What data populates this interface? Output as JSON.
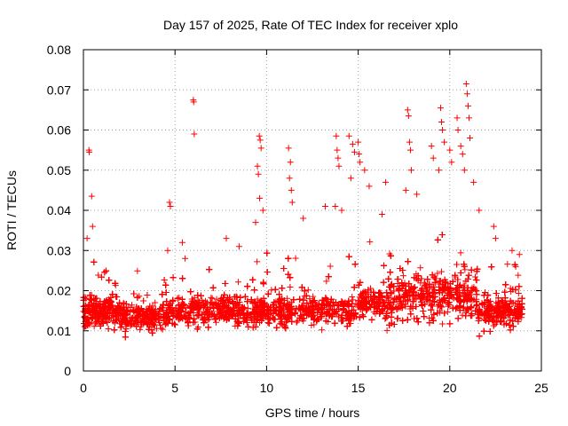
{
  "chart_data": {
    "type": "scatter",
    "title": "Day 157 of 2025, Rate Of TEC Index for receiver xplo",
    "xlabel": "GPS time / hours",
    "ylabel": "ROTI / TECUs",
    "xlim": [
      0,
      25
    ],
    "ylim": [
      0,
      0.08
    ],
    "x_ticks": [
      "0",
      "5",
      "10",
      "15",
      "20",
      "25"
    ],
    "y_ticks": [
      "0",
      "0.01",
      "0.02",
      "0.03",
      "0.04",
      "0.05",
      "0.06",
      "0.07",
      "0.08"
    ],
    "grid": true,
    "marker": "+",
    "series_color": "#ff0000",
    "series": [
      {
        "name": "ROTI",
        "points": [
          [
            0.3,
            0.055
          ],
          [
            0.32,
            0.0545
          ],
          [
            0.45,
            0.0435
          ],
          [
            0.2,
            0.033
          ],
          [
            0.5,
            0.036
          ],
          [
            4.7,
            0.042
          ],
          [
            4.75,
            0.041
          ],
          [
            4.6,
            0.03
          ],
          [
            5.4,
            0.032
          ],
          [
            5.55,
            0.028
          ],
          [
            6.0,
            0.0675
          ],
          [
            6.02,
            0.067
          ],
          [
            6.05,
            0.059
          ],
          [
            7.8,
            0.033
          ],
          [
            8.5,
            0.031
          ],
          [
            9.6,
            0.0585
          ],
          [
            9.65,
            0.0575
          ],
          [
            9.7,
            0.0555
          ],
          [
            9.5,
            0.051
          ],
          [
            9.55,
            0.049
          ],
          [
            9.62,
            0.043
          ],
          [
            9.4,
            0.037
          ],
          [
            9.8,
            0.04
          ],
          [
            11.2,
            0.0555
          ],
          [
            11.3,
            0.052
          ],
          [
            11.25,
            0.048
          ],
          [
            11.35,
            0.045
          ],
          [
            11.4,
            0.042
          ],
          [
            12.0,
            0.038
          ],
          [
            13.2,
            0.041
          ],
          [
            13.8,
            0.0585
          ],
          [
            13.85,
            0.055
          ],
          [
            13.9,
            0.053
          ],
          [
            13.95,
            0.051
          ],
          [
            13.75,
            0.041
          ],
          [
            14.1,
            0.04
          ],
          [
            14.5,
            0.0585
          ],
          [
            14.7,
            0.0565
          ],
          [
            14.8,
            0.0545
          ],
          [
            15.0,
            0.057
          ],
          [
            15.05,
            0.054
          ],
          [
            15.1,
            0.052
          ],
          [
            15.35,
            0.05
          ],
          [
            14.6,
            0.048
          ],
          [
            15.6,
            0.046
          ],
          [
            16.3,
            0.039
          ],
          [
            16.5,
            0.047
          ],
          [
            17.7,
            0.065
          ],
          [
            17.75,
            0.0635
          ],
          [
            17.8,
            0.057
          ],
          [
            17.85,
            0.055
          ],
          [
            17.9,
            0.05
          ],
          [
            17.6,
            0.045
          ],
          [
            18.2,
            0.044
          ],
          [
            19.0,
            0.056
          ],
          [
            19.1,
            0.053
          ],
          [
            19.5,
            0.0655
          ],
          [
            19.55,
            0.062
          ],
          [
            19.6,
            0.06
          ],
          [
            19.7,
            0.057
          ],
          [
            19.4,
            0.05
          ],
          [
            20.0,
            0.055
          ],
          [
            20.1,
            0.052
          ],
          [
            20.4,
            0.063
          ],
          [
            20.45,
            0.06
          ],
          [
            20.6,
            0.056
          ],
          [
            20.7,
            0.054
          ],
          [
            20.9,
            0.0715
          ],
          [
            20.95,
            0.069
          ],
          [
            21.0,
            0.066
          ],
          [
            21.05,
            0.063
          ],
          [
            21.1,
            0.058
          ],
          [
            20.8,
            0.05
          ],
          [
            21.3,
            0.047
          ],
          [
            21.6,
            0.04
          ],
          [
            22.4,
            0.036
          ],
          [
            22.5,
            0.033
          ],
          [
            23.4,
            0.03
          ],
          [
            23.6,
            0.026
          ],
          [
            23.8,
            0.029
          ]
        ]
      }
    ]
  }
}
